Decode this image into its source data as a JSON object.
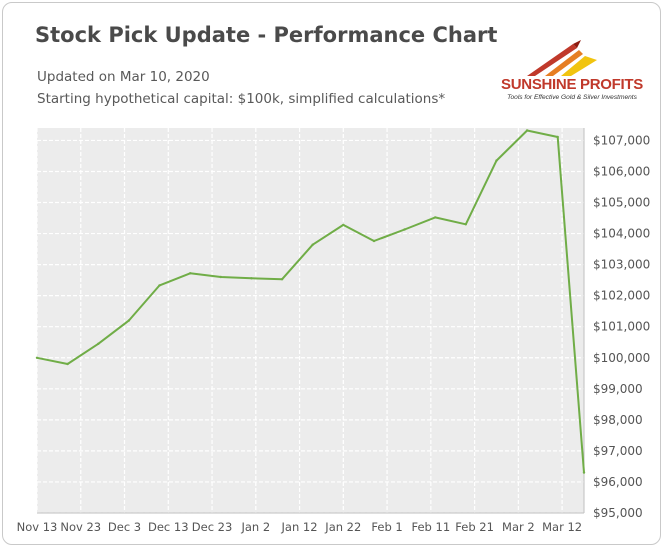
{
  "header": {
    "title": "Stock Pick Update - Performance Chart",
    "updated": "Updated on Mar 10, 2020",
    "capital_note": "Starting hypothetical capital: $100k, simplified calculations*"
  },
  "logo": {
    "name": "SUNSHINE PROFITS",
    "tagline": "Tools for Effective Gold & Silver Investments",
    "colors": [
      "#c0392b",
      "#e67e22",
      "#f1c40f"
    ]
  },
  "chart_data": {
    "type": "line",
    "title": "",
    "xlabel": "",
    "ylabel": "",
    "x_ticks": [
      "Nov 13",
      "Nov 23",
      "Dec 3",
      "Dec 13",
      "Dec 23",
      "Jan 2",
      "Jan 12",
      "Jan 22",
      "Feb 1",
      "Feb 11",
      "Feb 21",
      "Mar 2",
      "Mar 12"
    ],
    "y_ticks": [
      "$95,000",
      "$96,000",
      "$97,000",
      "$98,000",
      "$99,000",
      "$100,000",
      "$101,000",
      "$102,000",
      "$103,000",
      "$104,000",
      "$105,000",
      "$106,000",
      "$107,000"
    ],
    "ylim": [
      95000,
      107400
    ],
    "xlim": [
      "2019-11-13",
      "2020-03-17"
    ],
    "grid": true,
    "line_color": "#70ad47",
    "plot_background": "#ececec",
    "series": [
      {
        "x": [
          "2019-11-13",
          "2019-11-20",
          "2019-11-27",
          "2019-12-04",
          "2019-12-11",
          "2019-12-18",
          "2019-12-25",
          "2020-01-01",
          "2020-01-08",
          "2020-01-15",
          "2020-01-22",
          "2020-01-29",
          "2020-02-05",
          "2020-02-12",
          "2020-02-19",
          "2020-02-26",
          "2020-03-04",
          "2020-03-11",
          "2020-03-17"
        ],
        "values": [
          100000,
          99800,
          100450,
          101200,
          102330,
          102720,
          102600,
          102560,
          102530,
          103640,
          104280,
          103760,
          104130,
          104520,
          104300,
          106350,
          107320,
          107110,
          96300
        ]
      }
    ]
  }
}
